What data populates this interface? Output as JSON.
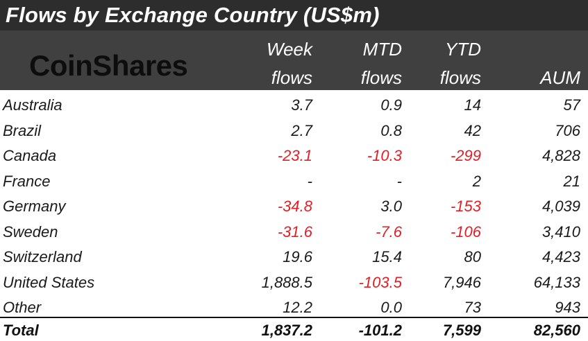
{
  "title": "Flows by Exchange Country (US$m)",
  "logo_text": "CoinShares",
  "headers": {
    "week": [
      "Week",
      "flows"
    ],
    "mtd": [
      "MTD",
      "flows"
    ],
    "ytd": [
      "YTD",
      "flows"
    ],
    "aum": "AUM"
  },
  "rows": [
    {
      "country": "Australia",
      "week": "3.7",
      "mtd": "0.9",
      "ytd": "14",
      "aum": "57"
    },
    {
      "country": "Brazil",
      "week": "2.7",
      "mtd": "0.8",
      "ytd": "42",
      "aum": "706"
    },
    {
      "country": "Canada",
      "week": "-23.1",
      "mtd": "-10.3",
      "ytd": "-299",
      "aum": "4,828"
    },
    {
      "country": "France",
      "week": "-",
      "mtd": "-",
      "ytd": "2",
      "aum": "21"
    },
    {
      "country": "Germany",
      "week": "-34.8",
      "mtd": "3.0",
      "ytd": "-153",
      "aum": "4,039"
    },
    {
      "country": "Sweden",
      "week": "-31.6",
      "mtd": "-7.6",
      "ytd": "-106",
      "aum": "3,410"
    },
    {
      "country": "Switzerland",
      "week": "19.6",
      "mtd": "15.4",
      "ytd": "80",
      "aum": "4,423"
    },
    {
      "country": "United States",
      "week": "1,888.5",
      "mtd": "-103.5",
      "ytd": "7,946",
      "aum": "64,133"
    },
    {
      "country": "Other",
      "week": "12.2",
      "mtd": "0.0",
      "ytd": "73",
      "aum": "943"
    }
  ],
  "total": {
    "label": "Total",
    "week": "1,837.2",
    "mtd": "-101.2",
    "ytd": "7,599",
    "aum": "82,560"
  },
  "colors": {
    "negative": "#e31e24",
    "header_bg": "#404040",
    "title_bg": "#2d2d2d"
  },
  "chart_data": {
    "type": "table",
    "title": "Flows by Exchange Country (US$m)",
    "columns": [
      "Week flows",
      "MTD flows",
      "YTD flows",
      "AUM"
    ],
    "rows": [
      [
        "Australia",
        "3.7",
        "0.9",
        "14",
        "57"
      ],
      [
        "Brazil",
        "2.7",
        "0.8",
        "42",
        "706"
      ],
      [
        "Canada",
        "-23.1",
        "-10.3",
        "-299",
        "4,828"
      ],
      [
        "France",
        "-",
        "-",
        "2",
        "21"
      ],
      [
        "Germany",
        "-34.8",
        "3.0",
        "-153",
        "4,039"
      ],
      [
        "Sweden",
        "-31.6",
        "-7.6",
        "-106",
        "3,410"
      ],
      [
        "Switzerland",
        "19.6",
        "15.4",
        "80",
        "4,423"
      ],
      [
        "United States",
        "1,888.5",
        "-103.5",
        "7,946",
        "64,133"
      ],
      [
        "Other",
        "12.2",
        "0.0",
        "73",
        "943"
      ],
      [
        "Total",
        "1,837.2",
        "-101.2",
        "7,599",
        "82,560"
      ]
    ]
  }
}
